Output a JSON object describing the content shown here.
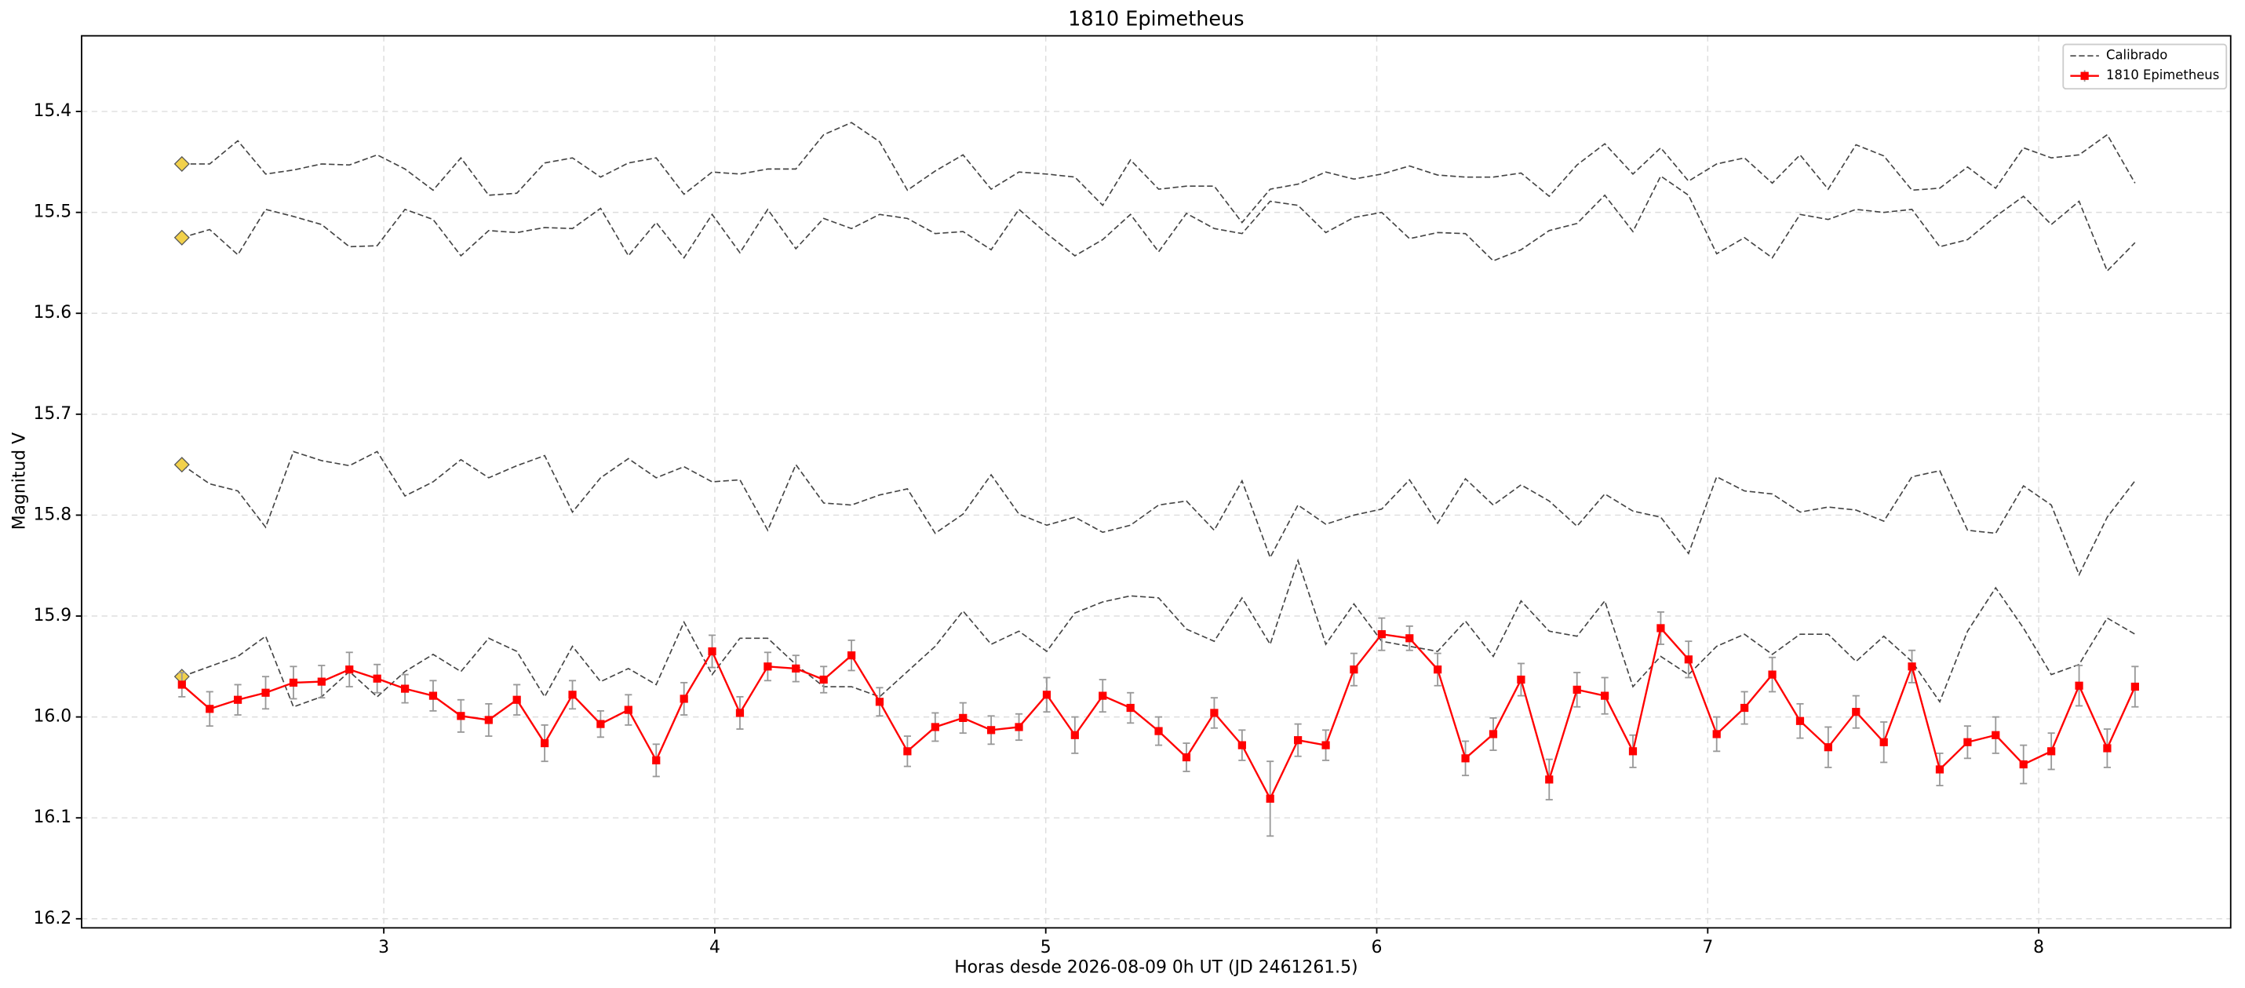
{
  "chart_data": {
    "type": "line",
    "title": "1810 Epimetheus",
    "x_label": "Horas desde 2026-08-09 0h UT (JD 2461261.5)",
    "y_label": "Magnitud V",
    "xlim": [
      2.087,
      8.58
    ],
    "ylim": [
      16.209,
      15.325
    ],
    "y_inverted": true,
    "xticks": [
      3,
      4,
      5,
      6,
      7,
      8
    ],
    "yticks": [
      15.4,
      15.5,
      15.6,
      15.7,
      15.8,
      15.9,
      {
        "value": 16,
        "label": "16.0"
      },
      16.1,
      16.2
    ],
    "grid": true,
    "legend": "upper right",
    "x": [
      2.39,
      2.474,
      2.559,
      2.643,
      2.727,
      2.812,
      2.896,
      2.98,
      3.064,
      3.149,
      3.233,
      3.317,
      3.402,
      3.486,
      3.57,
      3.655,
      3.739,
      3.823,
      3.907,
      3.992,
      4.076,
      4.16,
      4.245,
      4.329,
      4.413,
      4.498,
      4.582,
      4.666,
      4.75,
      4.835,
      4.919,
      5.003,
      5.088,
      5.172,
      5.256,
      5.341,
      5.425,
      5.509,
      5.593,
      5.678,
      5.762,
      5.846,
      5.931,
      6.015,
      6.099,
      6.184,
      6.268,
      6.352,
      6.436,
      6.521,
      6.605,
      6.689,
      6.774,
      6.858,
      6.942,
      7.027,
      7.111,
      7.195,
      7.279,
      7.364,
      7.448,
      7.532,
      7.617,
      7.701,
      7.785,
      7.87,
      7.954,
      8.038,
      8.122,
      8.207,
      8.291
    ],
    "reference_series": {
      "name": "Calibrado",
      "color": "#444444",
      "start_marker_color": "#f2d14b",
      "lines": [
        [
          15.452,
          15.452,
          15.429,
          15.462,
          15.458,
          15.452,
          15.453,
          15.443,
          15.457,
          15.478,
          15.446,
          15.483,
          15.481,
          15.451,
          15.446,
          15.465,
          15.451,
          15.446,
          15.482,
          15.46,
          15.462,
          15.457,
          15.457,
          15.423,
          15.411,
          15.43,
          15.478,
          15.459,
          15.443,
          15.477,
          15.46,
          15.462,
          15.465,
          15.493,
          15.448,
          15.477,
          15.474,
          15.474,
          15.51,
          15.477,
          15.472,
          15.46,
          15.467,
          15.462,
          15.454,
          15.463,
          15.465,
          15.465,
          15.461,
          15.484,
          15.453,
          15.432,
          15.462,
          15.436,
          15.469,
          15.452,
          15.446,
          15.471,
          15.443,
          15.477,
          15.433,
          15.444,
          15.478,
          15.476,
          15.455,
          15.476,
          15.436,
          15.446,
          15.443,
          15.423,
          15.471
        ],
        [
          15.525,
          15.517,
          15.542,
          15.497,
          15.504,
          15.512,
          15.534,
          15.533,
          15.497,
          15.507,
          15.543,
          15.518,
          15.52,
          15.515,
          15.516,
          15.496,
          15.543,
          15.51,
          15.545,
          15.502,
          15.54,
          15.497,
          15.536,
          15.506,
          15.516,
          15.502,
          15.506,
          15.521,
          15.519,
          15.537,
          15.497,
          15.521,
          15.543,
          15.527,
          15.502,
          15.539,
          15.501,
          15.516,
          15.521,
          15.489,
          15.493,
          15.52,
          15.505,
          15.5,
          15.526,
          15.52,
          15.521,
          15.548,
          15.537,
          15.518,
          15.511,
          15.483,
          15.519,
          15.464,
          15.483,
          15.541,
          15.525,
          15.545,
          15.502,
          15.507,
          15.497,
          15.5,
          15.497,
          15.534,
          15.527,
          15.504,
          15.484,
          15.512,
          15.489,
          15.558,
          15.53
        ],
        [
          15.75,
          15.769,
          15.776,
          15.812,
          15.737,
          15.746,
          15.751,
          15.737,
          15.781,
          15.767,
          15.745,
          15.763,
          15.751,
          15.741,
          15.797,
          15.763,
          15.744,
          15.763,
          15.752,
          15.767,
          15.765,
          15.815,
          15.75,
          15.788,
          15.79,
          15.78,
          15.774,
          15.818,
          15.799,
          15.76,
          15.799,
          15.81,
          15.802,
          15.817,
          15.81,
          15.79,
          15.786,
          15.815,
          15.766,
          15.842,
          15.79,
          15.809,
          15.8,
          15.794,
          15.765,
          15.808,
          15.764,
          15.79,
          15.77,
          15.786,
          15.811,
          15.779,
          15.796,
          15.802,
          15.838,
          15.762,
          15.776,
          15.779,
          15.797,
          15.792,
          15.795,
          15.806,
          15.762,
          15.756,
          15.815,
          15.818,
          15.771,
          15.79,
          15.859,
          15.802,
          15.766
        ],
        [
          15.96,
          15.95,
          15.94,
          15.92,
          15.99,
          15.98,
          15.955,
          15.98,
          15.955,
          15.938,
          15.955,
          15.922,
          15.935,
          15.98,
          15.93,
          15.965,
          15.952,
          15.968,
          15.906,
          15.958,
          15.922,
          15.922,
          15.948,
          15.97,
          15.97,
          15.98,
          15.955,
          15.93,
          15.895,
          15.928,
          15.915,
          15.935,
          15.897,
          15.886,
          15.88,
          15.882,
          15.913,
          15.925,
          15.882,
          15.928,
          15.845,
          15.928,
          15.888,
          15.925,
          15.93,
          15.935,
          15.905,
          15.94,
          15.885,
          15.915,
          15.92,
          15.885,
          15.97,
          15.94,
          15.958,
          15.93,
          15.918,
          15.938,
          15.918,
          15.918,
          15.945,
          15.92,
          15.945,
          15.985,
          15.915,
          15.872,
          15.912,
          15.958,
          15.948,
          15.902,
          15.918
        ]
      ]
    },
    "series": [
      {
        "name": "1810 Epimetheus",
        "color": "#ff0000",
        "error_color": "#999999",
        "values": [
          15.968,
          15.992,
          15.983,
          15.976,
          15.966,
          15.965,
          15.953,
          15.962,
          15.972,
          15.979,
          15.999,
          16.003,
          15.983,
          16.026,
          15.978,
          16.007,
          15.993,
          16.043,
          15.982,
          15.935,
          15.996,
          15.95,
          15.952,
          15.963,
          15.939,
          15.985,
          16.034,
          16.01,
          16.001,
          16.013,
          16.01,
          15.978,
          16.018,
          15.979,
          15.991,
          16.014,
          16.04,
          15.996,
          16.028,
          16.081,
          16.023,
          16.028,
          15.953,
          15.918,
          15.922,
          15.953,
          16.041,
          16.017,
          15.963,
          16.062,
          15.973,
          15.979,
          16.034,
          15.912,
          15.943,
          16.017,
          15.991,
          15.958,
          16.004,
          16.03,
          15.995,
          16.025,
          15.95,
          16.052,
          16.025,
          16.018,
          16.047,
          16.034,
          15.969,
          16.031,
          15.97
        ],
        "errors": [
          0.012,
          0.017,
          0.015,
          0.016,
          0.016,
          0.016,
          0.017,
          0.014,
          0.014,
          0.015,
          0.016,
          0.016,
          0.015,
          0.018,
          0.014,
          0.013,
          0.015,
          0.016,
          0.016,
          0.016,
          0.016,
          0.014,
          0.013,
          0.013,
          0.015,
          0.014,
          0.015,
          0.014,
          0.015,
          0.014,
          0.013,
          0.017,
          0.018,
          0.016,
          0.015,
          0.014,
          0.014,
          0.015,
          0.015,
          0.037,
          0.016,
          0.015,
          0.016,
          0.016,
          0.012,
          0.016,
          0.017,
          0.016,
          0.016,
          0.02,
          0.017,
          0.018,
          0.016,
          0.016,
          0.018,
          0.017,
          0.016,
          0.017,
          0.017,
          0.02,
          0.016,
          0.02,
          0.016,
          0.016,
          0.016,
          0.018,
          0.019,
          0.018,
          0.02,
          0.019,
          0.02
        ]
      }
    ]
  }
}
